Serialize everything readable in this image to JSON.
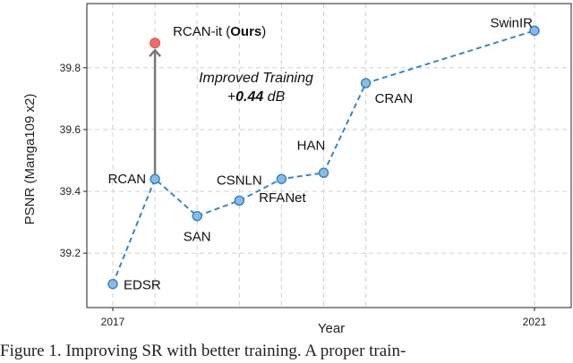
{
  "chart_data": {
    "type": "line",
    "xlabel": "Year",
    "ylabel": "PSNR (Manga109 x2)",
    "xlim": [
      2017,
      2021
    ],
    "ylim": [
      39.05,
      39.97
    ],
    "x_tick_labels": [
      "2017",
      "2021"
    ],
    "y_tick_labels": [
      "39.2",
      "39.4",
      "39.6",
      "39.8"
    ],
    "y_ticks": [
      39.2,
      39.4,
      39.6,
      39.8
    ],
    "grid": true,
    "series": [
      {
        "color": "#3b86c3",
        "points": [
          {
            "label": "EDSR",
            "x": 2017.0,
            "y": 39.1
          },
          {
            "label": "RCAN",
            "x": 2017.4,
            "y": 39.44
          },
          {
            "label": "SAN",
            "x": 2017.8,
            "y": 39.32
          },
          {
            "label": "CSNLN",
            "x": 2018.2,
            "y": 39.37
          },
          {
            "label": "RFANet",
            "x": 2018.6,
            "y": 39.44
          },
          {
            "label": "HAN",
            "x": 2019.0,
            "y": 39.46
          },
          {
            "label": "CRAN",
            "x": 2019.4,
            "y": 39.75
          },
          {
            "label": "SwinIR",
            "x": 2021.0,
            "y": 39.92
          }
        ]
      }
    ],
    "highlight": {
      "label_prefix": "RCAN-it (",
      "label_bold": "Ours",
      "label_suffix": ")",
      "x": 2017.4,
      "y": 39.88,
      "color": "#ef6a6a"
    },
    "annotation": {
      "line1": "Improved Training",
      "line2_prefix": "+",
      "line2_bold": "0.44",
      "line2_suffix": " dB"
    }
  },
  "caption": "Figure 1.  Improving SR with better training.  A proper train-"
}
